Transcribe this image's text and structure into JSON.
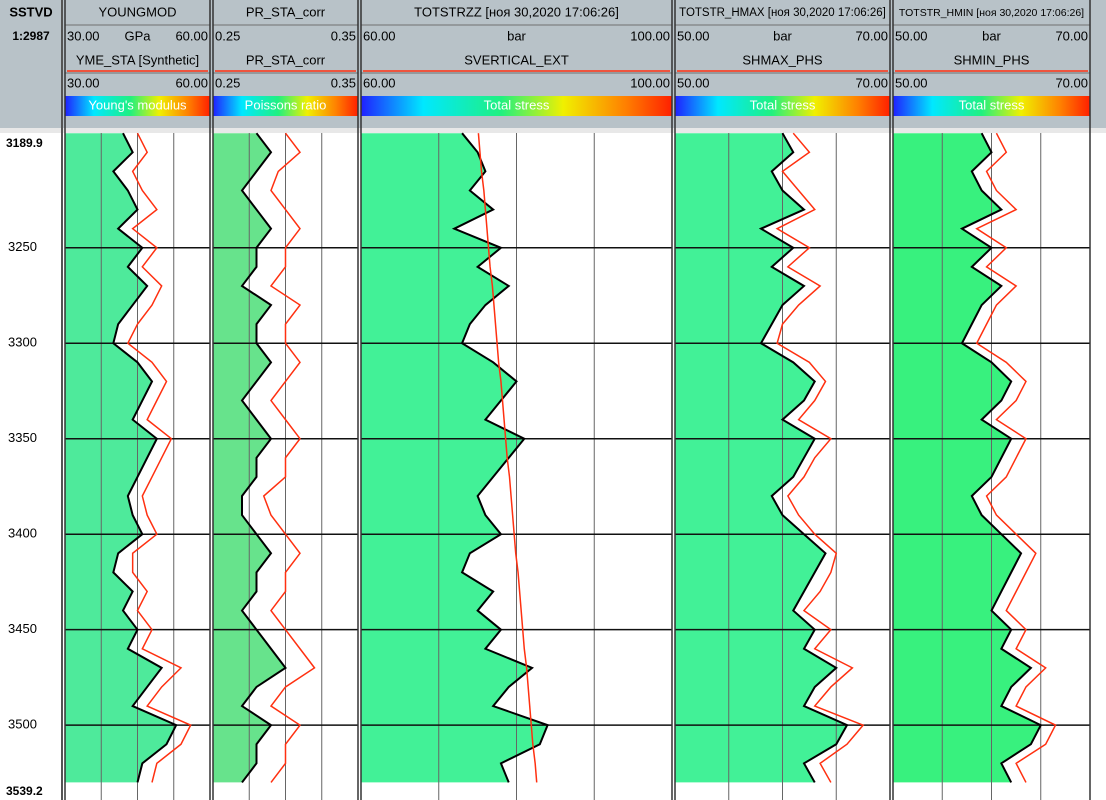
{
  "chart_data": {
    "type": "well-log",
    "depth_name": "SSTVD",
    "depth_scale": "1:2987",
    "ylim": [
      3189.9,
      3539.2
    ],
    "yticks": [
      3250,
      3300,
      3350,
      3400,
      3450,
      3500
    ],
    "depths": [
      3190,
      3200,
      3210,
      3220,
      3230,
      3240,
      3250,
      3260,
      3270,
      3280,
      3290,
      3300,
      3310,
      3320,
      3330,
      3340,
      3350,
      3360,
      3370,
      3380,
      3390,
      3400,
      3410,
      3420,
      3430,
      3440,
      3450,
      3460,
      3470,
      3480,
      3490,
      3500,
      3510,
      3520,
      3530
    ],
    "tracks": [
      {
        "colorbar_label": "Young's modulus",
        "fill": "#3be890",
        "curves": [
          {
            "name": "YOUNGMOD",
            "unit": "GPa",
            "xlim": [
              30,
              60
            ],
            "xlim_labels": [
              "30.00",
              "60.00"
            ],
            "color": "#000000",
            "values": [
              42,
              44,
              40,
              43,
              45,
              41,
              46,
              43,
              47,
              44,
              41,
              40,
              45,
              48,
              46,
              44,
              49,
              47,
              45,
              43,
              44,
              46,
              41,
              40,
              44,
              42,
              45,
              43,
              50,
              47,
              44,
              53,
              51,
              46,
              45
            ]
          },
          {
            "name": "YME_STA [Synthetic]",
            "xlim": [
              30,
              60
            ],
            "xlim_labels": [
              "30.00",
              "60.00"
            ],
            "color": "#ff3010",
            "values": [
              45,
              47,
              44,
              46,
              49,
              44,
              49,
              46,
              50,
              48,
              45,
              43,
              48,
              51,
              49,
              47,
              52,
              50,
              48,
              46,
              47,
              49,
              44,
              44,
              47,
              45,
              48,
              46,
              54,
              50,
              47,
              56,
              54,
              49,
              48
            ]
          }
        ]
      },
      {
        "colorbar_label": "Poissons ratio",
        "fill": "#56e080",
        "curves": [
          {
            "name": "PR_STA_corr",
            "xlim": [
              0.25,
              0.35
            ],
            "xlim_labels": [
              "0.25",
              "0.35"
            ],
            "color": "#000000",
            "values": [
              0.28,
              0.29,
              0.28,
              0.27,
              0.28,
              0.29,
              0.28,
              0.28,
              0.27,
              0.29,
              0.28,
              0.28,
              0.29,
              0.28,
              0.27,
              0.28,
              0.29,
              0.28,
              0.28,
              0.27,
              0.27,
              0.28,
              0.29,
              0.28,
              0.28,
              0.27,
              0.28,
              0.29,
              0.3,
              0.28,
              0.27,
              0.29,
              0.28,
              0.28,
              0.27
            ]
          },
          {
            "name": "PR_STA_corr",
            "xlim": [
              0.25,
              0.35
            ],
            "xlim_labels": [
              "0.25",
              "0.35"
            ],
            "color": "#ff3010",
            "values": [
              0.3,
              0.31,
              0.295,
              0.29,
              0.3,
              0.31,
              0.3,
              0.3,
              0.29,
              0.31,
              0.3,
              0.3,
              0.31,
              0.3,
              0.29,
              0.3,
              0.31,
              0.3,
              0.3,
              0.285,
              0.29,
              0.3,
              0.31,
              0.3,
              0.3,
              0.29,
              0.3,
              0.31,
              0.32,
              0.3,
              0.29,
              0.31,
              0.3,
              0.3,
              0.29
            ]
          }
        ]
      },
      {
        "colorbar_label": "Total stress",
        "fill": "#2ef08c",
        "curves": [
          {
            "name": "TOTSTRZZ [ноя 30,2020 17:06:26]",
            "unit": "bar",
            "xlim": [
              60,
              100
            ],
            "xlim_labels": [
              "60.00",
              "100.00"
            ],
            "color": "#000000",
            "values": [
              73,
              75,
              76,
              74,
              77,
              72,
              78,
              75,
              79,
              76,
              74,
              73,
              77,
              80,
              78,
              76,
              81,
              79,
              77,
              75,
              76,
              78,
              74,
              73,
              77,
              75,
              78,
              76,
              82,
              79,
              77,
              84,
              83,
              78,
              79
            ]
          },
          {
            "name": "SVERTICAL_EXT",
            "xlim": [
              60,
              100
            ],
            "xlim_labels": [
              "60.00",
              "100.00"
            ],
            "color": "#ff3010",
            "values": [
              75.1,
              75.3,
              75.5,
              75.8,
              76.0,
              76.2,
              76.4,
              76.6,
              76.9,
              77.1,
              77.3,
              77.5,
              77.7,
              78.0,
              78.2,
              78.4,
              78.6,
              78.8,
              79.1,
              79.3,
              79.5,
              79.7,
              79.9,
              80.2,
              80.4,
              80.6,
              80.8,
              81.0,
              81.3,
              81.5,
              81.7,
              81.9,
              82.1,
              82.4,
              82.6
            ]
          }
        ]
      },
      {
        "colorbar_label": "Total stress",
        "fill": "#2ef08c",
        "curves": [
          {
            "name": "TOTSTR_HMAX [ноя 30,2020 17:06:26]",
            "unit": "bar",
            "xlim": [
              50,
              70
            ],
            "xlim_labels": [
              "50.00",
              "70.00"
            ],
            "color": "#000000",
            "values": [
              60,
              61,
              59,
              60,
              62,
              58,
              61,
              59,
              62,
              60,
              59,
              58,
              61,
              63,
              62,
              60,
              63,
              62,
              61,
              59,
              60,
              62,
              64,
              63,
              62,
              61,
              63,
              62,
              65,
              63,
              62,
              66,
              65,
              62,
              63
            ]
          },
          {
            "name": "SHMAX_PHS",
            "xlim": [
              50,
              70
            ],
            "xlim_labels": [
              "50.00",
              "70.00"
            ],
            "color": "#ff3010",
            "values": [
              61,
              62.5,
              60,
              61.5,
              63,
              59.5,
              62.5,
              60.5,
              63.5,
              61.5,
              60,
              59.5,
              62.5,
              64,
              63,
              61.5,
              64.5,
              63,
              62,
              60.5,
              61.5,
              63,
              65,
              64.5,
              63.5,
              62,
              64.5,
              63,
              66.5,
              64.5,
              63,
              67.5,
              66,
              63.5,
              64.5
            ]
          }
        ]
      },
      {
        "colorbar_label": "Total stress",
        "fill": "#22f070",
        "curves": [
          {
            "name": "TOTSTR_HMIN [ноя 30,2020 17:06:26]",
            "unit": "bar",
            "xlim": [
              50,
              70
            ],
            "xlim_labels": [
              "50.00",
              "70.00"
            ],
            "color": "#000000",
            "values": [
              59,
              60,
              58,
              59,
              61,
              57,
              60,
              58,
              61,
              59,
              58,
              57,
              60,
              62,
              61,
              59,
              62,
              61,
              60,
              58,
              59,
              61,
              63,
              62,
              61,
              60,
              62,
              61,
              64,
              62,
              61,
              65,
              64,
              61,
              62
            ]
          },
          {
            "name": "SHMIN_PHS",
            "xlim": [
              50,
              70
            ],
            "xlim_labels": [
              "50.00",
              "70.00"
            ],
            "color": "#ff3010",
            "values": [
              60.5,
              61.5,
              59.5,
              60.5,
              62.5,
              58.5,
              61.5,
              59.5,
              62.5,
              60.5,
              59.5,
              58.5,
              61.5,
              63.5,
              62.5,
              60.5,
              63.5,
              62.5,
              61.5,
              59.5,
              60.5,
              62.5,
              64.5,
              63.5,
              62.5,
              61.5,
              63.5,
              62.5,
              65.5,
              63.5,
              62.5,
              66.5,
              65.5,
              62.5,
              63.5
            ]
          }
        ]
      }
    ]
  }
}
